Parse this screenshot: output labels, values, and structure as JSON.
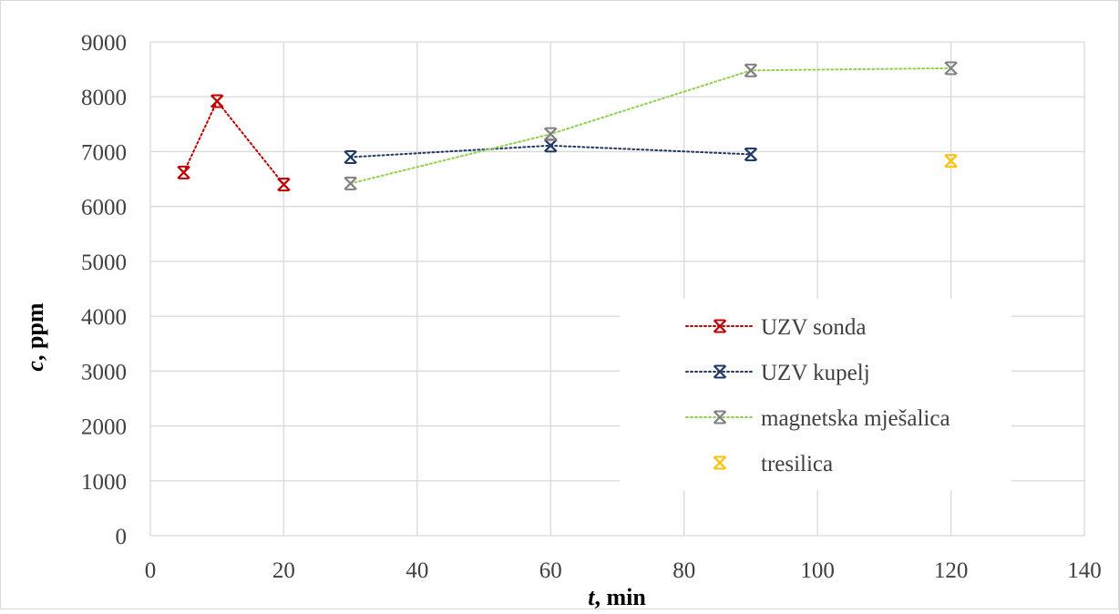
{
  "chart_data": {
    "type": "scatter",
    "title": "",
    "xlabel": "t, min",
    "ylabel": "c, ppm",
    "xlabel_italic": "t",
    "xlabel_rest": ", min",
    "ylabel_italic": "c",
    "ylabel_rest": ", ppm",
    "xlim": [
      0,
      140
    ],
    "ylim": [
      0,
      9000
    ],
    "xticks": [
      0,
      20,
      40,
      60,
      80,
      100,
      120,
      140
    ],
    "yticks": [
      0,
      1000,
      2000,
      3000,
      4000,
      5000,
      6000,
      7000,
      8000,
      9000
    ],
    "grid": true,
    "legend_position": "right",
    "series": [
      {
        "name": "UZV sonda",
        "color": "#c00000",
        "line": "dotted",
        "marker": "star-x",
        "x": [
          5,
          10,
          20
        ],
        "y": [
          6620,
          7920,
          6400
        ]
      },
      {
        "name": "UZV kupelj",
        "color": "#1f3864",
        "line": "dotted",
        "marker": "star-x",
        "x": [
          30,
          60,
          90
        ],
        "y": [
          6900,
          7110,
          6950
        ]
      },
      {
        "name": "magnetska mješalica",
        "color": "#92d050",
        "marker_color": "#808080",
        "line": "dotted",
        "marker": "star-x",
        "x": [
          30,
          60,
          90,
          120
        ],
        "y": [
          6420,
          7320,
          8480,
          8520
        ]
      },
      {
        "name": "tresilica",
        "color": "#ffc000",
        "line": "none",
        "marker": "star-x",
        "x": [
          120
        ],
        "y": [
          6830
        ]
      }
    ]
  }
}
